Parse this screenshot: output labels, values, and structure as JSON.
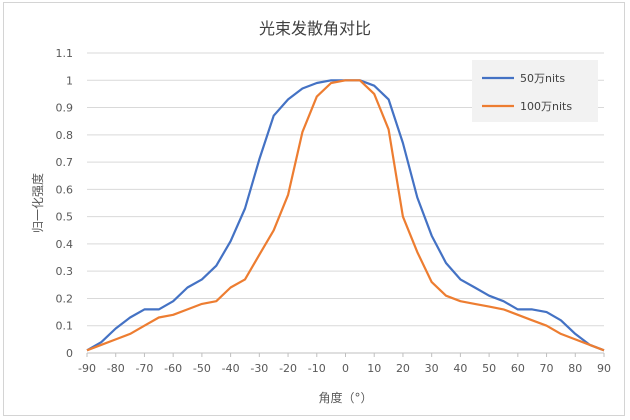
{
  "chart_data": {
    "type": "line",
    "title": "光束发散角对比",
    "xlabel": "角度（°）",
    "ylabel": "归一化强度",
    "xlim": [
      -90,
      90
    ],
    "ylim": [
      0,
      1.1
    ],
    "x_ticks": [
      "-90",
      "-80",
      "-70",
      "-60",
      "-50",
      "-40",
      "-30",
      "-20",
      "-10",
      "0",
      "10",
      "20",
      "30",
      "40",
      "50",
      "60",
      "70",
      "80",
      "90"
    ],
    "y_ticks": [
      "0",
      "0.1",
      "0.2",
      "0.3",
      "0.4",
      "0.5",
      "0.6",
      "0.7",
      "0.8",
      "0.9",
      "1",
      "1.1"
    ],
    "grid": "horizontal",
    "legend_position": "top-right",
    "x": [
      -90,
      -85,
      -80,
      -75,
      -70,
      -65,
      -60,
      -55,
      -50,
      -45,
      -40,
      -35,
      -30,
      -25,
      -20,
      -15,
      -10,
      -5,
      0,
      5,
      10,
      15,
      20,
      25,
      30,
      35,
      40,
      45,
      50,
      55,
      60,
      65,
      70,
      75,
      80,
      85,
      90
    ],
    "series": [
      {
        "name": "50万nits",
        "color": "#4472c4",
        "values": [
          0.01,
          0.04,
          0.09,
          0.13,
          0.16,
          0.16,
          0.19,
          0.24,
          0.27,
          0.32,
          0.41,
          0.53,
          0.71,
          0.87,
          0.93,
          0.97,
          0.99,
          1.0,
          1.0,
          1.0,
          0.98,
          0.93,
          0.77,
          0.57,
          0.43,
          0.33,
          0.27,
          0.24,
          0.21,
          0.19,
          0.16,
          0.16,
          0.15,
          0.12,
          0.07,
          0.03,
          0.01
        ]
      },
      {
        "name": "100万nits",
        "color": "#ed7d31",
        "values": [
          0.01,
          0.03,
          0.05,
          0.07,
          0.1,
          0.13,
          0.14,
          0.16,
          0.18,
          0.19,
          0.24,
          0.27,
          0.36,
          0.45,
          0.58,
          0.81,
          0.94,
          0.99,
          1.0,
          1.0,
          0.95,
          0.82,
          0.5,
          0.37,
          0.26,
          0.21,
          0.19,
          0.18,
          0.17,
          0.16,
          0.14,
          0.12,
          0.1,
          0.07,
          0.05,
          0.03,
          0.01
        ]
      }
    ]
  }
}
